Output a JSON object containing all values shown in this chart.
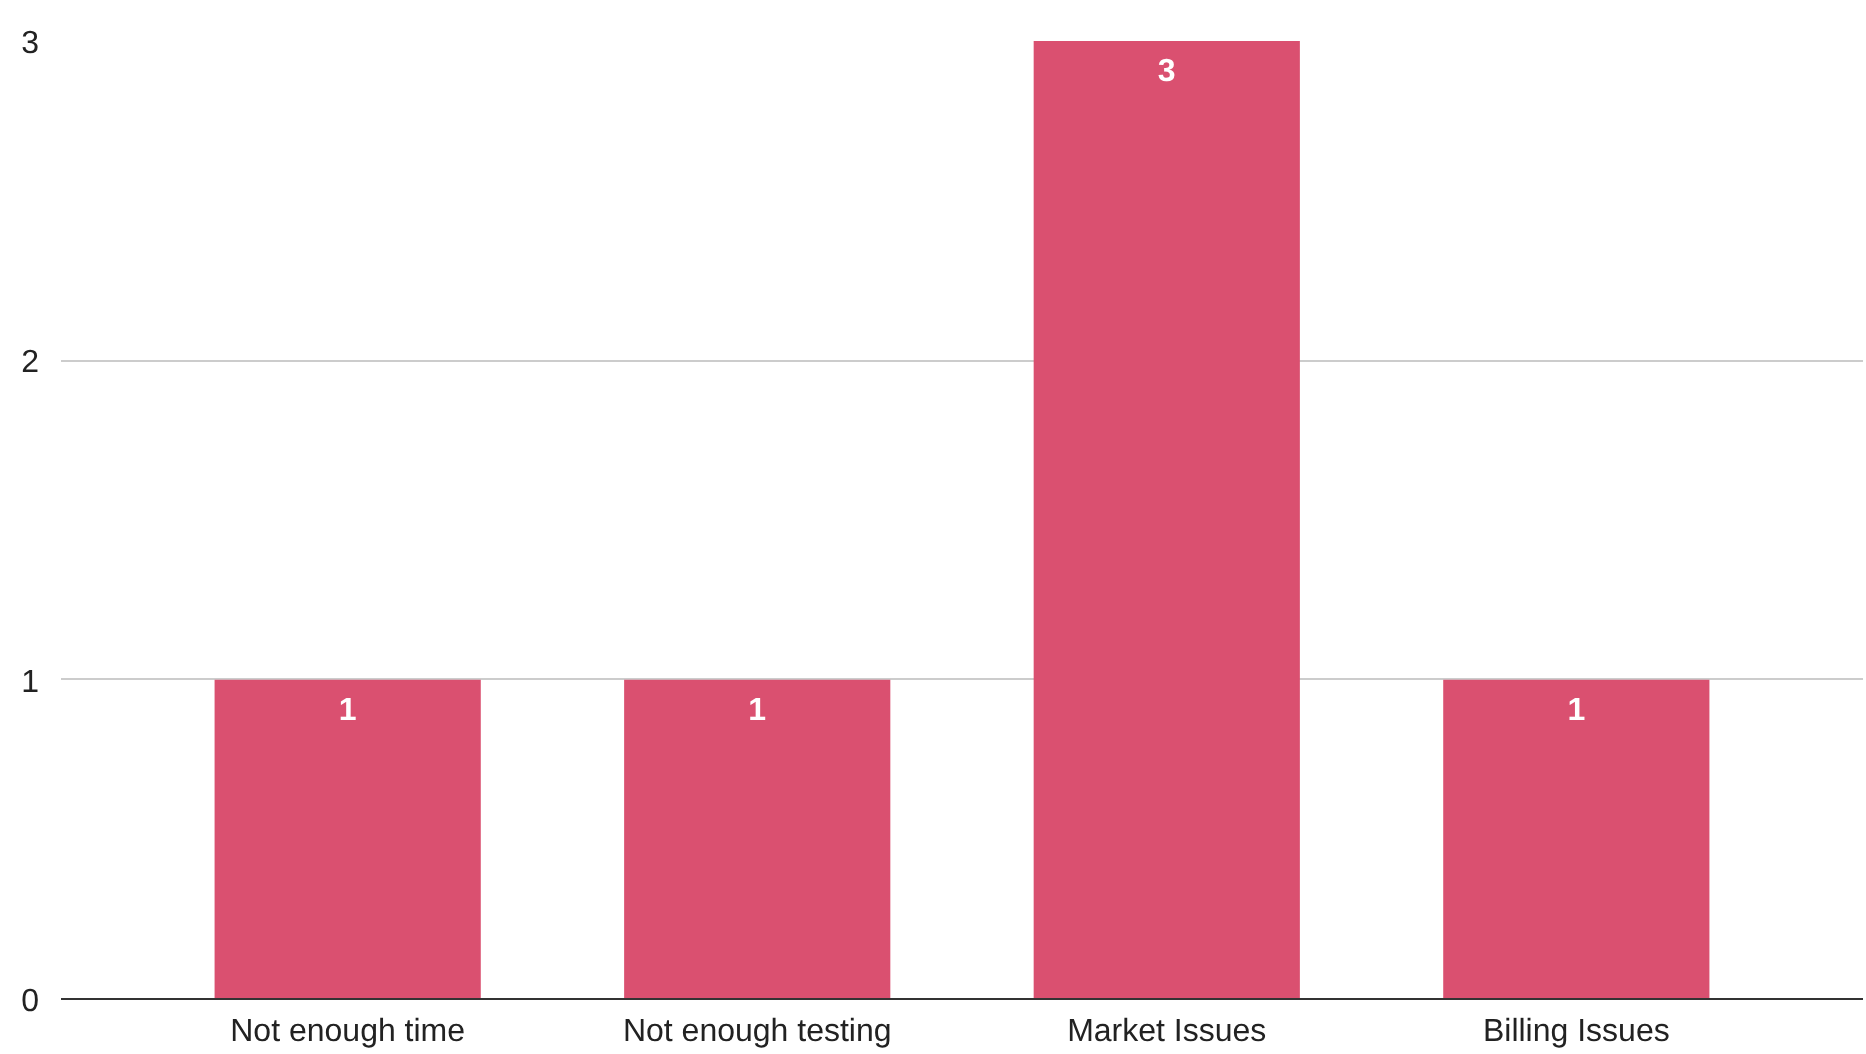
{
  "chart_data": {
    "type": "bar",
    "categories": [
      "Not enough time",
      "Not enough testing",
      "Market Issues",
      "Billing Issues"
    ],
    "values": [
      1,
      1,
      3,
      1
    ],
    "color": "#da5070",
    "ylim": [
      0,
      3
    ],
    "yticks": [
      0,
      1,
      2,
      3
    ],
    "grid": "y",
    "data_labels": true
  }
}
